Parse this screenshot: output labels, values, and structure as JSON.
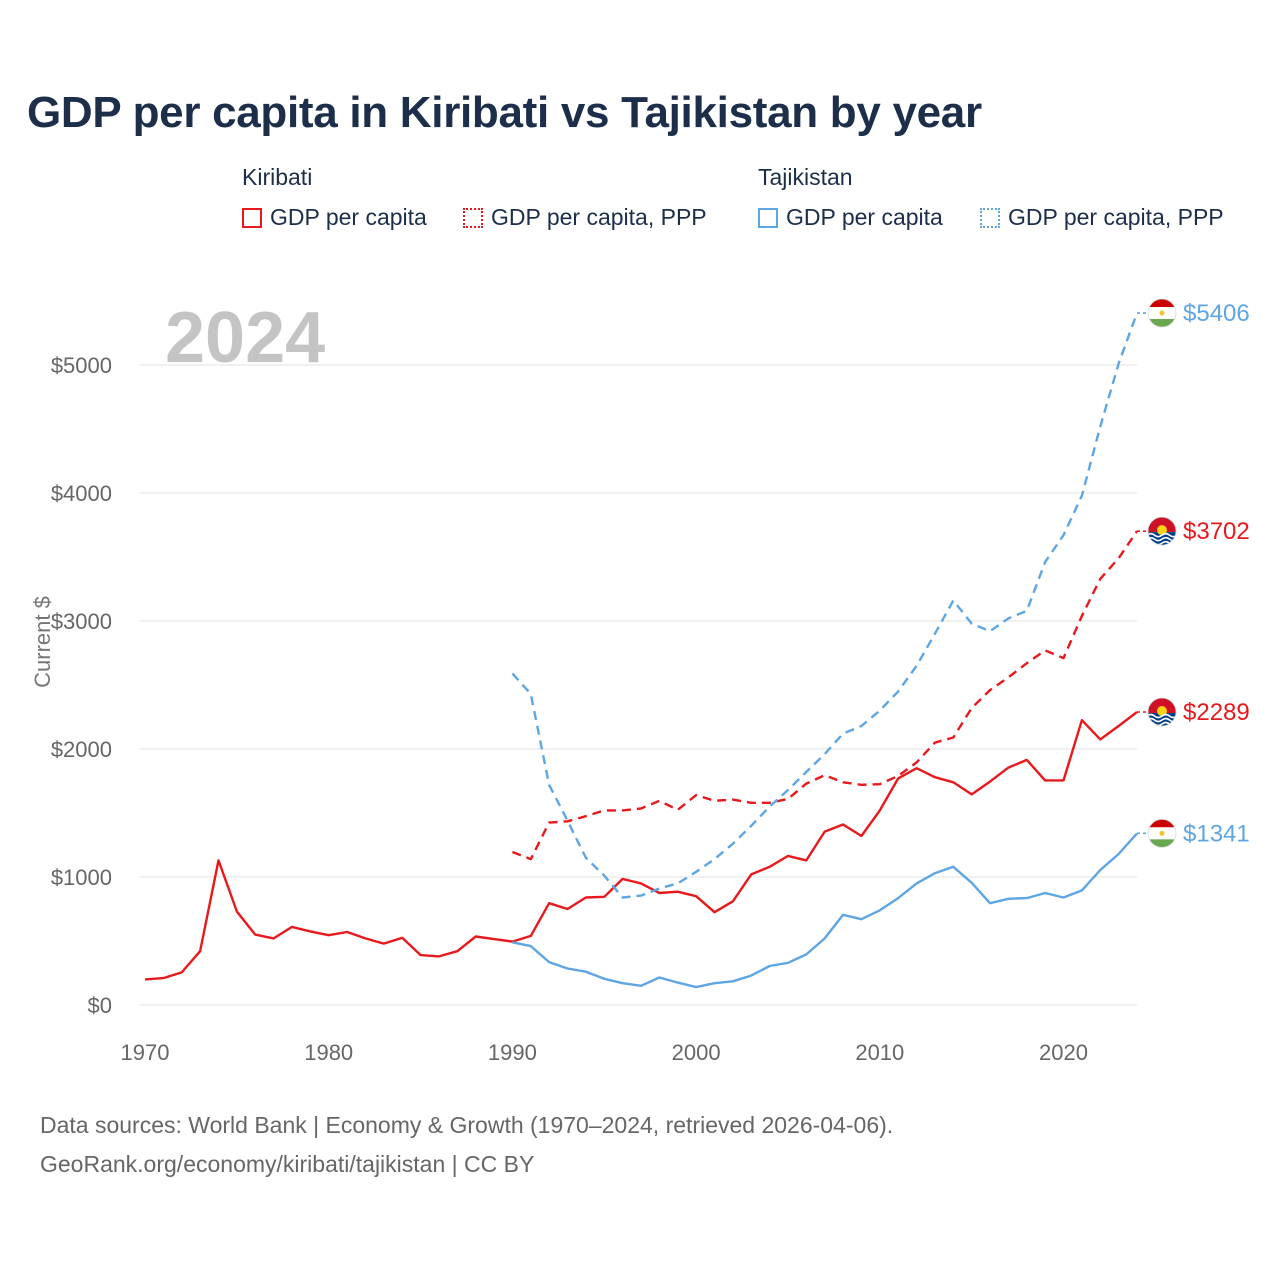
{
  "title": "GDP per capita in Kiribati vs Tajikistan by year",
  "legend": [
    {
      "country": "Kiribati",
      "color": "#e8191c",
      "items": [
        {
          "label": "GDP per capita",
          "style": "solid"
        },
        {
          "label": "GDP per capita, PPP",
          "style": "dotted"
        }
      ]
    },
    {
      "country": "Tajikistan",
      "color": "#5ea5e3",
      "items": [
        {
          "label": "GDP per capita",
          "style": "solid"
        },
        {
          "label": "GDP per capita, PPP",
          "style": "dotted"
        }
      ]
    }
  ],
  "footer": {
    "line1": "Data sources: World Bank | Economy & Growth (1970–2024, retrieved 2026-04-06).",
    "line2": "GeoRank.org/economy/kiribati/tajikistan | CC BY"
  },
  "chart_data": {
    "type": "line",
    "year_label": "2024",
    "ylabel": "Current $",
    "xlim": [
      1970,
      2024
    ],
    "ylim": [
      0,
      5000
    ],
    "x_ticks": [
      1970,
      1980,
      1990,
      2000,
      2010,
      2020
    ],
    "y_ticks": [
      {
        "value": 0,
        "label": "$0"
      },
      {
        "value": 1000,
        "label": "$1000"
      },
      {
        "value": 2000,
        "label": "$2000"
      },
      {
        "value": 3000,
        "label": "$3000"
      },
      {
        "value": 4000,
        "label": "$4000"
      },
      {
        "value": 5000,
        "label": "$5000"
      }
    ],
    "series": [
      {
        "name": "Kiribati GDP per capita",
        "color": "#e8191c",
        "dash": "solid",
        "flag": "kiribati",
        "end_label": "$2289",
        "start_year": 1970,
        "values": [
          200,
          210,
          255,
          420,
          1130,
          730,
          550,
          520,
          610,
          575,
          545,
          570,
          520,
          480,
          525,
          390,
          380,
          420,
          535,
          515,
          495,
          540,
          795,
          750,
          840,
          845,
          985,
          950,
          875,
          885,
          850,
          725,
          810,
          1020,
          1080,
          1165,
          1130,
          1355,
          1410,
          1320,
          1520,
          1770,
          1850,
          1780,
          1740,
          1645,
          1745,
          1855,
          1915,
          1755,
          1755,
          2225,
          2075,
          2180,
          2289
        ]
      },
      {
        "name": "Kiribati GDP per capita, PPP",
        "color": "#e8191c",
        "dash": "dashed",
        "flag": "kiribati",
        "end_label": "$3702",
        "start_year": 1990,
        "values": [
          1195,
          1140,
          1425,
          1435,
          1475,
          1520,
          1520,
          1535,
          1595,
          1525,
          1640,
          1595,
          1605,
          1580,
          1580,
          1610,
          1730,
          1795,
          1740,
          1720,
          1725,
          1790,
          1895,
          2050,
          2090,
          2320,
          2460,
          2560,
          2670,
          2770,
          2710,
          3040,
          3330,
          3490,
          3702
        ]
      },
      {
        "name": "Tajikistan GDP per capita",
        "color": "#5ea5e3",
        "dash": "solid",
        "flag": "tajikistan",
        "end_label": "$1341",
        "start_year": 1990,
        "values": [
          490,
          460,
          335,
          285,
          260,
          205,
          170,
          150,
          215,
          175,
          140,
          170,
          185,
          230,
          305,
          330,
          395,
          520,
          705,
          670,
          740,
          835,
          950,
          1030,
          1080,
          955,
          795,
          830,
          835,
          875,
          840,
          895,
          1055,
          1180,
          1341
        ]
      },
      {
        "name": "Tajikistan GDP per capita, PPP",
        "color": "#5ea5e3",
        "dash": "dashed",
        "flag": "tajikistan",
        "end_label": "$5406",
        "start_year": 1990,
        "values": [
          2590,
          2430,
          1720,
          1440,
          1150,
          1010,
          840,
          855,
          910,
          950,
          1040,
          1140,
          1260,
          1400,
          1550,
          1680,
          1820,
          1960,
          2120,
          2180,
          2300,
          2450,
          2650,
          2900,
          3160,
          2980,
          2920,
          3020,
          3080,
          3460,
          3670,
          3980,
          4520,
          5010,
          5406
        ]
      }
    ]
  }
}
